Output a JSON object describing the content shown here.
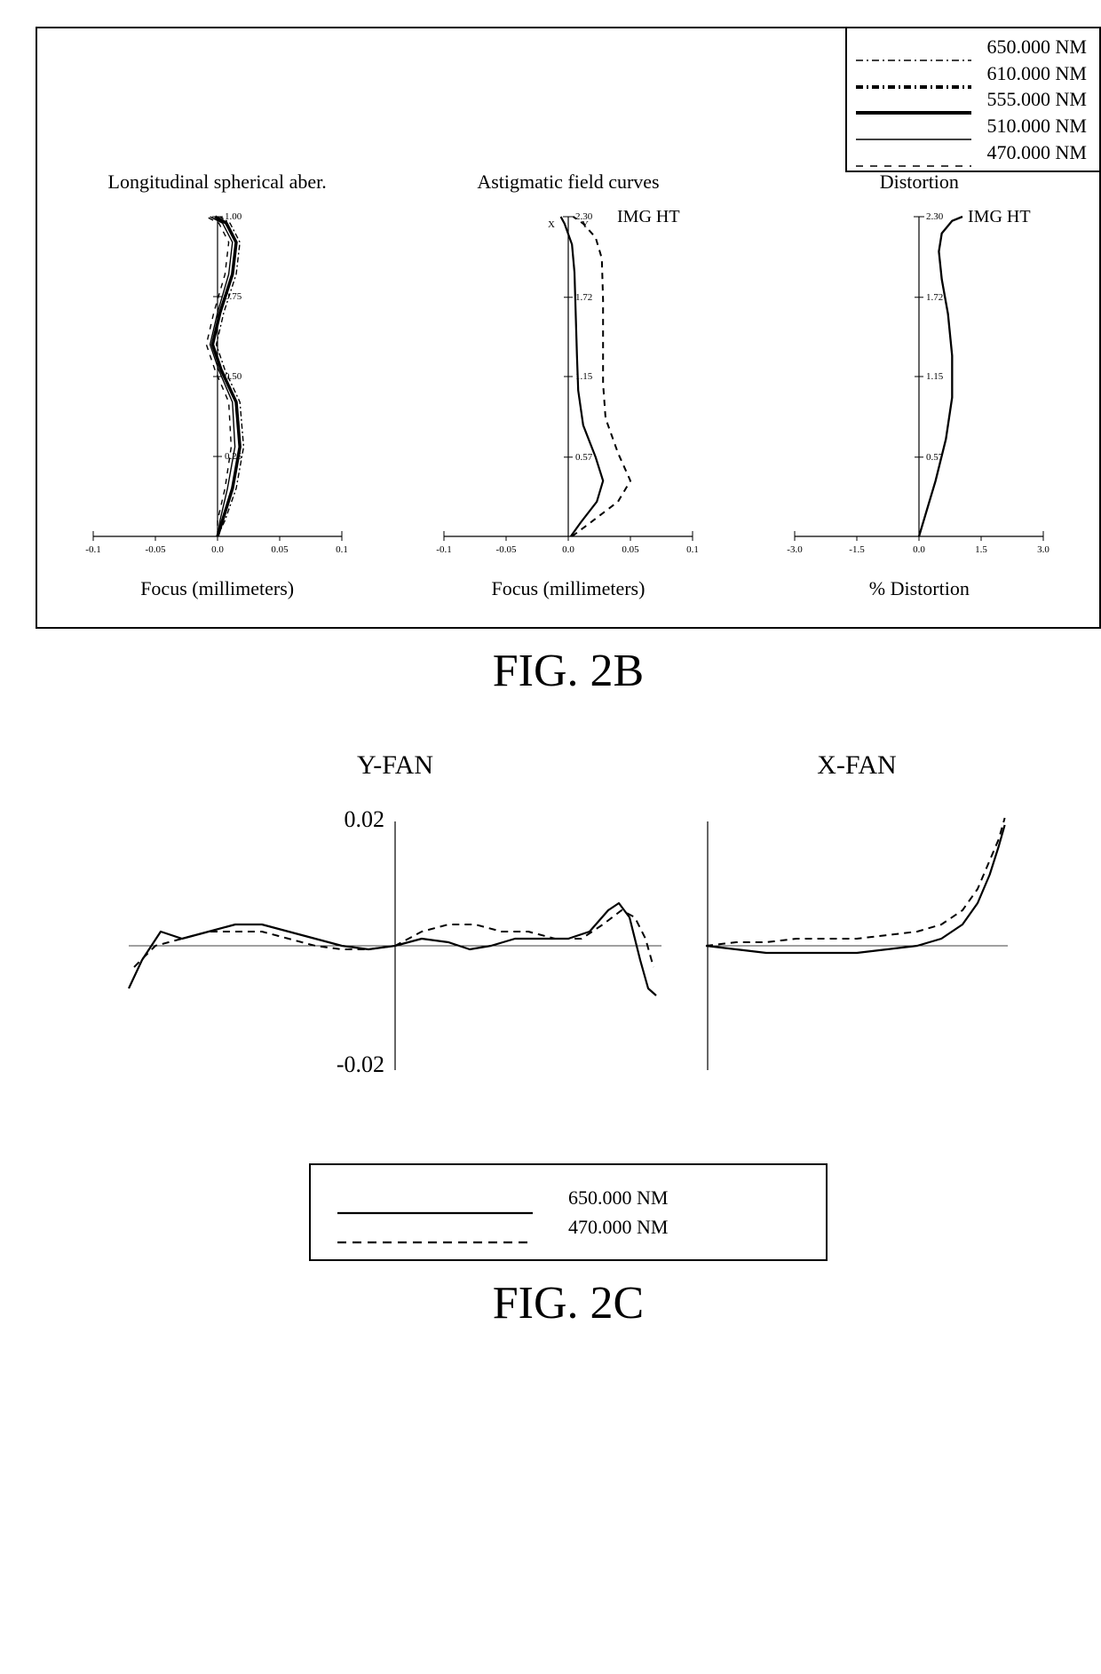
{
  "fig2b": {
    "caption": "FIG. 2B",
    "legend": [
      {
        "label": "650.000 NM",
        "stroke_width": 1.5,
        "dash": "8 4 2 4"
      },
      {
        "label": "610.000 NM",
        "stroke_width": 4,
        "dash": "8 4 2 4"
      },
      {
        "label": "555.000 NM",
        "stroke_width": 4,
        "dash": ""
      },
      {
        "label": "510.000 NM",
        "stroke_width": 1.5,
        "dash": ""
      },
      {
        "label": "470.000 NM",
        "stroke_width": 1.5,
        "dash": "8 8"
      }
    ],
    "chart1": {
      "title": "Longitudinal spherical aber.",
      "xlabel": "Focus (millimeters)",
      "xlim": [
        -0.1,
        0.1
      ],
      "xticks": [
        -0.1,
        -0.05,
        0.0,
        0.05,
        0.1
      ],
      "ylim": [
        0.0,
        1.0
      ],
      "yticks": [
        0.25,
        0.5,
        0.75,
        1.0
      ],
      "curves": [
        {
          "stroke_width": 3.5,
          "dash": "",
          "pts": [
            [
              0,
              0
            ],
            [
              0.004,
              0.05
            ],
            [
              0.012,
              0.15
            ],
            [
              0.018,
              0.28
            ],
            [
              0.015,
              0.42
            ],
            [
              0.003,
              0.52
            ],
            [
              -0.004,
              0.6
            ],
            [
              0.002,
              0.7
            ],
            [
              0.012,
              0.82
            ],
            [
              0.015,
              0.92
            ],
            [
              0.007,
              0.98
            ],
            [
              -0.002,
              1.0
            ]
          ]
        },
        {
          "stroke_width": 1.4,
          "dash": "",
          "pts": [
            [
              0,
              0
            ],
            [
              0.002,
              0.05
            ],
            [
              0.008,
              0.15
            ],
            [
              0.014,
              0.28
            ],
            [
              0.012,
              0.42
            ],
            [
              0.001,
              0.52
            ],
            [
              -0.006,
              0.6
            ],
            [
              0.0,
              0.7
            ],
            [
              0.009,
              0.82
            ],
            [
              0.012,
              0.92
            ],
            [
              0.004,
              0.98
            ],
            [
              -0.006,
              1.0
            ]
          ]
        },
        {
          "stroke_width": 1.4,
          "dash": "6 3 2 3",
          "pts": [
            [
              0,
              0
            ],
            [
              0.006,
              0.05
            ],
            [
              0.015,
              0.15
            ],
            [
              0.021,
              0.28
            ],
            [
              0.018,
              0.42
            ],
            [
              0.006,
              0.52
            ],
            [
              -0.001,
              0.6
            ],
            [
              0.005,
              0.7
            ],
            [
              0.015,
              0.82
            ],
            [
              0.018,
              0.92
            ],
            [
              0.01,
              0.98
            ],
            [
              0.002,
              1.0
            ]
          ]
        },
        {
          "stroke_width": 1.4,
          "dash": "6 6",
          "pts": [
            [
              0,
              0
            ],
            [
              0.0,
              0.05
            ],
            [
              0.006,
              0.15
            ],
            [
              0.011,
              0.28
            ],
            [
              0.009,
              0.42
            ],
            [
              -0.002,
              0.52
            ],
            [
              -0.009,
              0.6
            ],
            [
              -0.003,
              0.7
            ],
            [
              0.006,
              0.82
            ],
            [
              0.009,
              0.92
            ],
            [
              0.001,
              0.98
            ],
            [
              -0.009,
              1.0
            ]
          ]
        }
      ]
    },
    "chart2": {
      "title": "Astigmatic field curves",
      "subtitle_left": "X",
      "subtitle_right": "Y",
      "subtitle_img": "IMG HT",
      "xlabel": "Focus (millimeters)",
      "xlim": [
        -0.1,
        0.1
      ],
      "xticks": [
        -0.1,
        -0.05,
        0.0,
        0.05,
        0.1
      ],
      "ylim": [
        0.0,
        2.3
      ],
      "yticks": [
        0.57,
        1.15,
        1.72,
        2.3
      ],
      "curves": [
        {
          "stroke_width": 2.2,
          "dash": "",
          "pts": [
            [
              0.002,
              0
            ],
            [
              0.01,
              0.1
            ],
            [
              0.023,
              0.25
            ],
            [
              0.028,
              0.4
            ],
            [
              0.022,
              0.57
            ],
            [
              0.012,
              0.8
            ],
            [
              0.008,
              1.05
            ],
            [
              0.007,
              1.3
            ],
            [
              0.006,
              1.6
            ],
            [
              0.005,
              1.9
            ],
            [
              0.003,
              2.1
            ],
            [
              -0.003,
              2.25
            ],
            [
              -0.006,
              2.3
            ]
          ]
        },
        {
          "stroke_width": 2.0,
          "dash": "7 6",
          "pts": [
            [
              0.003,
              0
            ],
            [
              0.018,
              0.1
            ],
            [
              0.04,
              0.25
            ],
            [
              0.05,
              0.4
            ],
            [
              0.04,
              0.6
            ],
            [
              0.03,
              0.85
            ],
            [
              0.028,
              1.1
            ],
            [
              0.028,
              1.4
            ],
            [
              0.028,
              1.7
            ],
            [
              0.027,
              2.0
            ],
            [
              0.022,
              2.15
            ],
            [
              0.012,
              2.25
            ],
            [
              0.004,
              2.3
            ]
          ]
        }
      ]
    },
    "chart3": {
      "title": "Distortion",
      "subtitle_img": "IMG HT",
      "xlabel": "% Distortion",
      "xlim": [
        -3.0,
        3.0
      ],
      "xticks": [
        -3.0,
        -1.5,
        0.0,
        1.5,
        3.0
      ],
      "ylim": [
        0.0,
        2.3
      ],
      "yticks": [
        0.57,
        1.15,
        1.72,
        2.3
      ],
      "curves": [
        {
          "stroke_width": 2.3,
          "dash": "",
          "pts": [
            [
              0,
              0
            ],
            [
              0.15,
              0.15
            ],
            [
              0.4,
              0.4
            ],
            [
              0.65,
              0.7
            ],
            [
              0.8,
              1.0
            ],
            [
              0.8,
              1.3
            ],
            [
              0.7,
              1.6
            ],
            [
              0.55,
              1.85
            ],
            [
              0.48,
              2.05
            ],
            [
              0.55,
              2.18
            ],
            [
              0.8,
              2.27
            ],
            [
              1.05,
              2.3
            ]
          ]
        }
      ]
    }
  },
  "fig2c": {
    "caption": "FIG. 2C",
    "yfan": {
      "title": "Y-FAN",
      "ylim": [
        -0.02,
        0.02
      ],
      "ylabels_top": "0.02",
      "ylabels_bot": "-0.02",
      "xlim": [
        -1,
        1
      ],
      "curves": [
        {
          "stroke_width": 2.2,
          "dash": "",
          "pts": [
            [
              -1.0,
              -0.006
            ],
            [
              -0.95,
              -0.002
            ],
            [
              -0.88,
              0.002
            ],
            [
              -0.8,
              0.001
            ],
            [
              -0.7,
              0.002
            ],
            [
              -0.6,
              0.003
            ],
            [
              -0.5,
              0.003
            ],
            [
              -0.4,
              0.002
            ],
            [
              -0.3,
              0.001
            ],
            [
              -0.2,
              0.0
            ],
            [
              -0.1,
              -0.0005
            ],
            [
              0.0,
              0.0
            ],
            [
              0.1,
              0.001
            ],
            [
              0.2,
              0.0005
            ],
            [
              0.28,
              -0.0005
            ],
            [
              0.36,
              0.0
            ],
            [
              0.45,
              0.001
            ],
            [
              0.55,
              0.001
            ],
            [
              0.65,
              0.001
            ],
            [
              0.73,
              0.002
            ],
            [
              0.8,
              0.005
            ],
            [
              0.84,
              0.006
            ],
            [
              0.88,
              0.004
            ],
            [
              0.92,
              -0.002
            ],
            [
              0.95,
              -0.006
            ],
            [
              0.98,
              -0.007
            ]
          ]
        },
        {
          "stroke_width": 2.0,
          "dash": "8 6",
          "pts": [
            [
              -0.98,
              -0.003
            ],
            [
              -0.9,
              0.0
            ],
            [
              -0.8,
              0.001
            ],
            [
              -0.7,
              0.002
            ],
            [
              -0.6,
              0.002
            ],
            [
              -0.5,
              0.002
            ],
            [
              -0.4,
              0.001
            ],
            [
              -0.3,
              0.0
            ],
            [
              -0.2,
              -0.0005
            ],
            [
              -0.1,
              -0.0005
            ],
            [
              0.0,
              0.0
            ],
            [
              0.1,
              0.002
            ],
            [
              0.2,
              0.003
            ],
            [
              0.3,
              0.003
            ],
            [
              0.4,
              0.002
            ],
            [
              0.5,
              0.002
            ],
            [
              0.6,
              0.001
            ],
            [
              0.7,
              0.001
            ],
            [
              0.78,
              0.003
            ],
            [
              0.85,
              0.005
            ],
            [
              0.9,
              0.004
            ],
            [
              0.94,
              0.001
            ],
            [
              0.97,
              -0.003
            ]
          ]
        }
      ]
    },
    "xfan": {
      "title": "X-FAN",
      "ylim": [
        -0.02,
        0.02
      ],
      "ylabels_top": "0.02",
      "ylabels_bot": "-0.02",
      "xlim": [
        0,
        1
      ],
      "curves": [
        {
          "stroke_width": 2.2,
          "dash": "",
          "pts": [
            [
              0.0,
              0.0
            ],
            [
              0.1,
              -0.0005
            ],
            [
              0.2,
              -0.001
            ],
            [
              0.3,
              -0.001
            ],
            [
              0.4,
              -0.001
            ],
            [
              0.5,
              -0.001
            ],
            [
              0.6,
              -0.0005
            ],
            [
              0.7,
              0.0
            ],
            [
              0.78,
              0.001
            ],
            [
              0.85,
              0.003
            ],
            [
              0.9,
              0.006
            ],
            [
              0.94,
              0.01
            ],
            [
              0.97,
              0.014
            ],
            [
              0.99,
              0.017
            ]
          ]
        },
        {
          "stroke_width": 2.0,
          "dash": "8 6",
          "pts": [
            [
              0.0,
              0.0
            ],
            [
              0.1,
              0.0005
            ],
            [
              0.2,
              0.0005
            ],
            [
              0.3,
              0.001
            ],
            [
              0.4,
              0.001
            ],
            [
              0.5,
              0.001
            ],
            [
              0.6,
              0.0015
            ],
            [
              0.7,
              0.002
            ],
            [
              0.78,
              0.003
            ],
            [
              0.85,
              0.005
            ],
            [
              0.9,
              0.008
            ],
            [
              0.94,
              0.012
            ],
            [
              0.97,
              0.015
            ],
            [
              0.99,
              0.018
            ]
          ]
        }
      ]
    },
    "legend": [
      {
        "label": "650.000 NM",
        "stroke_width": 2.2,
        "dash": ""
      },
      {
        "label": "470.000 NM",
        "stroke_width": 2.2,
        "dash": "10 7"
      }
    ]
  },
  "colors": {
    "stroke": "#000000",
    "bg": "#ffffff"
  }
}
